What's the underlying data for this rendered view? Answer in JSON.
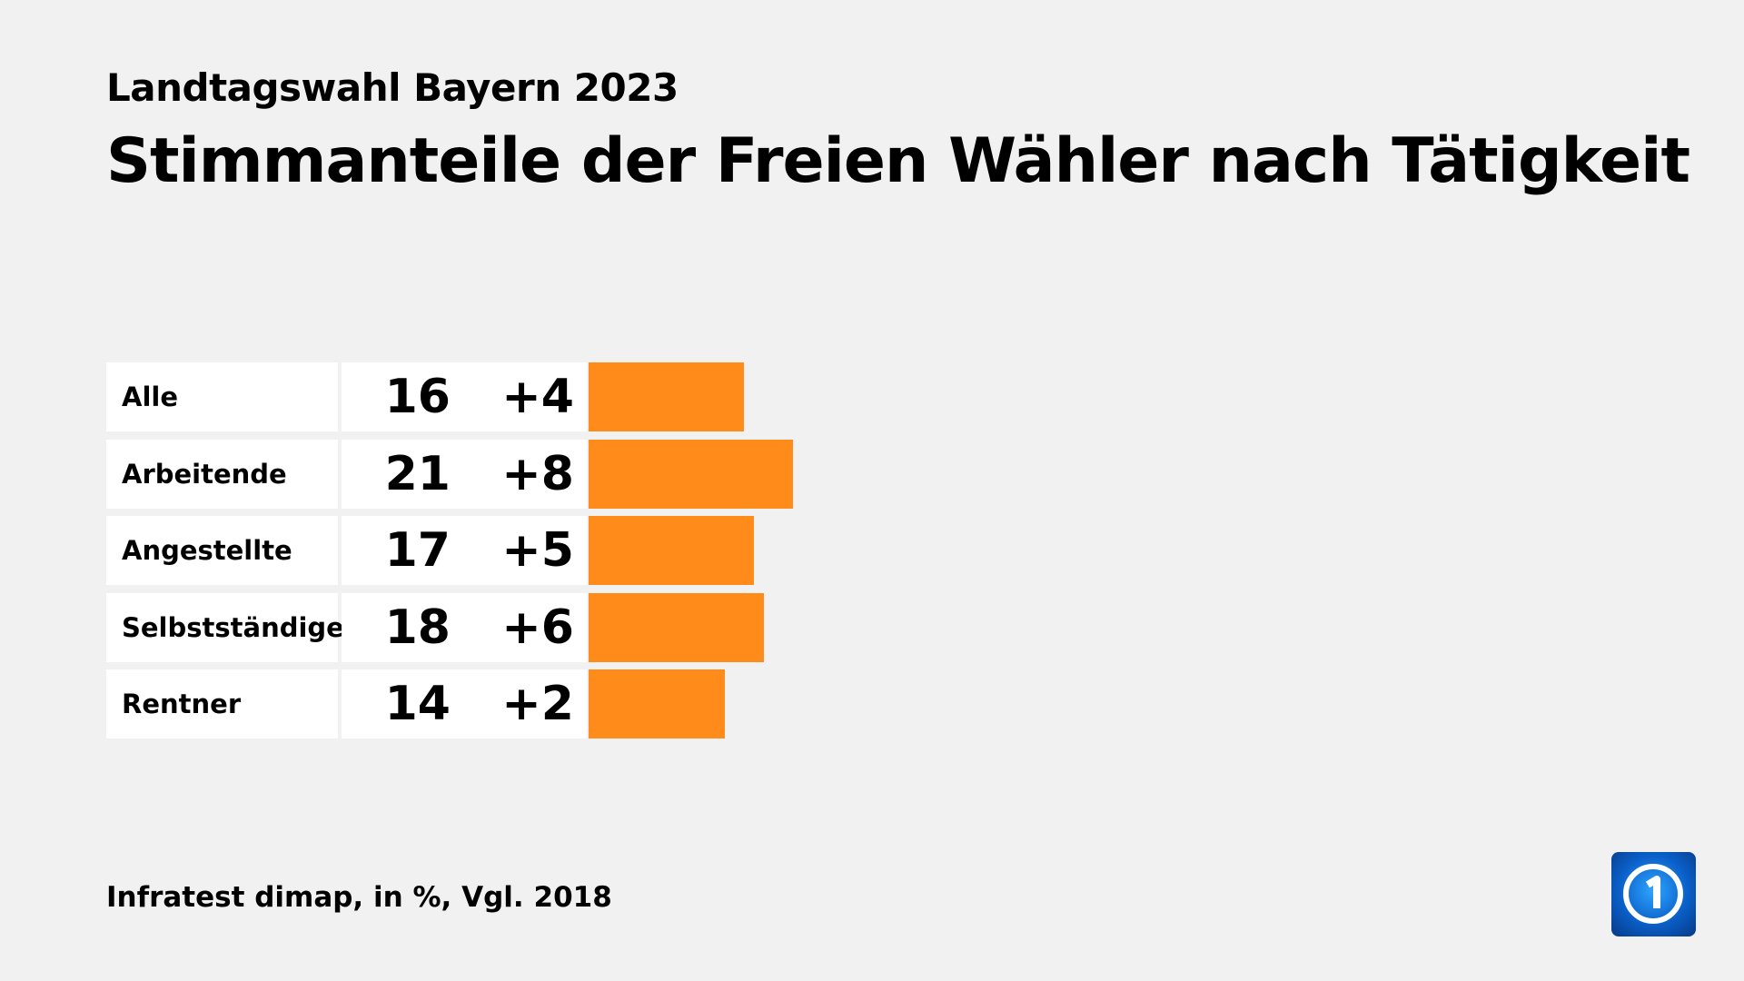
{
  "header": {
    "subtitle": "Landtagswahl Bayern 2023",
    "title": "Stimmanteile der Freien Wähler nach Tätigkeit"
  },
  "footer": {
    "source": "Infratest dimap, in %, Vgl. 2018"
  },
  "logo": {
    "icon": "ard-das-erste-logo"
  },
  "chart_data": {
    "type": "bar",
    "orientation": "horizontal",
    "title": "Stimmanteile der Freien Wähler nach Tätigkeit",
    "categories": [
      "Alle",
      "Arbeitende",
      "Angestellte",
      "Selbstständige",
      "Rentner"
    ],
    "values": [
      16,
      21,
      17,
      18,
      14
    ],
    "diff_labels": [
      "+4",
      "+8",
      "+5",
      "+6",
      "+2"
    ],
    "bar_color": "#ff8c1a",
    "grid": false
  }
}
